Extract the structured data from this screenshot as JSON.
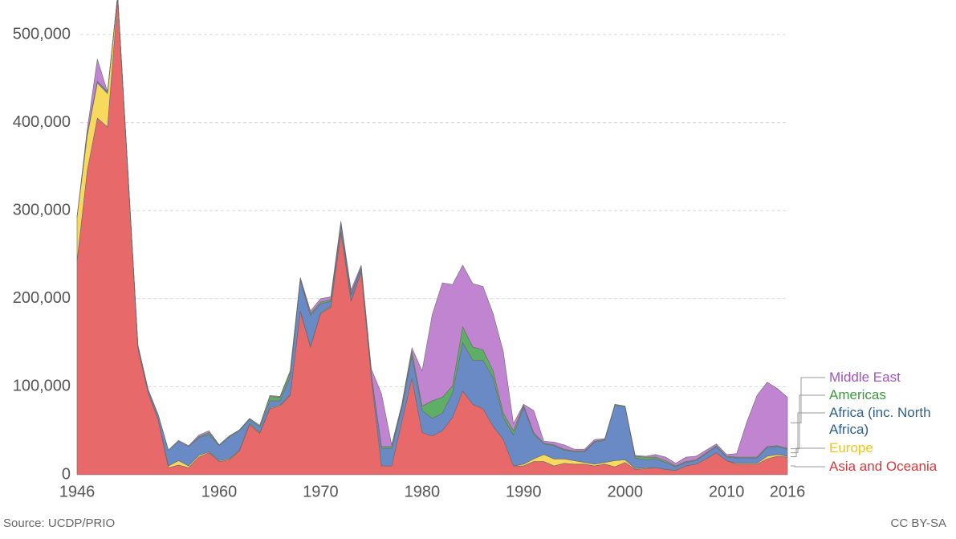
{
  "chart_data": {
    "type": "stacked-area",
    "x": [
      1946,
      1947,
      1948,
      1949,
      1950,
      1951,
      1952,
      1953,
      1954,
      1955,
      1956,
      1957,
      1958,
      1959,
      1960,
      1961,
      1962,
      1963,
      1964,
      1965,
      1966,
      1967,
      1968,
      1969,
      1970,
      1971,
      1972,
      1973,
      1974,
      1975,
      1976,
      1977,
      1978,
      1979,
      1980,
      1981,
      1982,
      1983,
      1984,
      1985,
      1986,
      1987,
      1988,
      1989,
      1990,
      1991,
      1992,
      1993,
      1994,
      1995,
      1996,
      1997,
      1998,
      1999,
      2000,
      2001,
      2002,
      2003,
      2004,
      2005,
      2006,
      2007,
      2008,
      2009,
      2010,
      2011,
      2012,
      2013,
      2014,
      2015,
      2016
    ],
    "series": [
      {
        "name": "Asia and Oceania",
        "color": "#e8696a",
        "label_color": "#d23a3a",
        "values": [
          243000,
          345000,
          405000,
          395000,
          540000,
          343000,
          143000,
          93000,
          62000,
          8000,
          11000,
          8000,
          20000,
          25000,
          15000,
          17000,
          27000,
          57000,
          47000,
          75000,
          78000,
          90000,
          185000,
          145000,
          183000,
          190000,
          275000,
          197000,
          230000,
          110000,
          10000,
          10000,
          60000,
          110000,
          48000,
          44000,
          50000,
          65000,
          95000,
          80000,
          75000,
          55000,
          40000,
          10000,
          10000,
          15000,
          15000,
          10000,
          13000,
          12000,
          12000,
          10000,
          12000,
          9000,
          14000,
          6000,
          7000,
          8000,
          6000,
          5000,
          10000,
          12000,
          18000,
          25000,
          16000,
          12000,
          12000,
          12000,
          18000,
          21000,
          20000
        ]
      },
      {
        "name": "Europe",
        "color": "#f7d95e",
        "label_color": "#f2c418",
        "values": [
          50000,
          40000,
          40000,
          38000,
          3000,
          2000,
          1000,
          1000,
          1000,
          2000,
          5000,
          2000,
          2000,
          1000,
          1000,
          1000,
          1000,
          1000,
          1000,
          1000,
          1000,
          1000,
          1000,
          1000,
          1000,
          1000,
          1000,
          1000,
          1000,
          0,
          0,
          0,
          0,
          0,
          0,
          0,
          0,
          0,
          0,
          0,
          0,
          0,
          0,
          0,
          2000,
          3000,
          8000,
          8000,
          5000,
          4000,
          2000,
          2000,
          2000,
          7000,
          3000,
          1000,
          1000,
          0,
          0,
          0,
          0,
          0,
          0,
          0,
          0,
          1000,
          1000,
          1000,
          3000,
          2000,
          1000
        ]
      },
      {
        "name": "Africa (inc. North Africa)",
        "color": "#6a8ac6",
        "label_color": "#2f5f8c",
        "values": [
          0,
          2000,
          2000,
          2000,
          2000,
          2000,
          3000,
          3000,
          5000,
          18000,
          22000,
          22000,
          20000,
          20000,
          17000,
          25000,
          22000,
          5000,
          6000,
          8000,
          5000,
          20000,
          35000,
          35000,
          10000,
          6000,
          8000,
          6000,
          4000,
          3000,
          20000,
          20000,
          15000,
          25000,
          25000,
          20000,
          20000,
          28000,
          55000,
          50000,
          55000,
          55000,
          25000,
          35000,
          65000,
          28000,
          12000,
          15000,
          10000,
          10000,
          12000,
          25000,
          25000,
          63000,
          60000,
          12000,
          9000,
          10000,
          8000,
          4000,
          4000,
          4000,
          6000,
          7000,
          4000,
          6000,
          6000,
          6000,
          10000,
          9000,
          8000
        ]
      },
      {
        "name": "Americas",
        "color": "#5fae66",
        "label_color": "#3c9a3c",
        "values": [
          0,
          0,
          0,
          0,
          0,
          0,
          0,
          0,
          0,
          0,
          0,
          0,
          1000,
          2000,
          1000,
          1000,
          1000,
          1000,
          2000,
          5000,
          4000,
          5000,
          2000,
          2000,
          2000,
          2000,
          2000,
          2000,
          1000,
          1000,
          2000,
          2000,
          3000,
          5000,
          5000,
          20000,
          18000,
          8000,
          18000,
          15000,
          12000,
          8000,
          5000,
          5000,
          2000,
          2000,
          1000,
          1000,
          1000,
          1000,
          1000,
          1000,
          1000,
          1000,
          1000,
          2000,
          3000,
          2000,
          2000,
          1000,
          1000,
          1000,
          1000,
          1000,
          1000,
          1000,
          1000,
          1000,
          1000,
          1000,
          1000
        ]
      },
      {
        "name": "Middle East",
        "color": "#c084d0",
        "label_color": "#a152c2",
        "values": [
          0,
          5000,
          25000,
          0,
          0,
          0,
          0,
          0,
          0,
          0,
          1000,
          1000,
          2000,
          2000,
          0,
          0,
          0,
          0,
          0,
          1000,
          1000,
          2000,
          1000,
          3000,
          4000,
          3000,
          2000,
          4000,
          2000,
          6000,
          60000,
          2000,
          2000,
          4000,
          40000,
          98000,
          130000,
          115000,
          70000,
          72000,
          72000,
          65000,
          70000,
          8000,
          1000,
          25000,
          2000,
          3000,
          5000,
          2000,
          2000,
          2000,
          1000,
          0,
          0,
          1000,
          1000,
          3000,
          4000,
          3000,
          5000,
          4000,
          3000,
          2000,
          2000,
          4000,
          40000,
          70000,
          73000,
          65000,
          58000
        ]
      }
    ],
    "xlim": [
      1946,
      2016
    ],
    "xticks": [
      1946,
      1960,
      1970,
      1980,
      1990,
      2000,
      2010,
      2016
    ],
    "ylim": [
      0,
      540000
    ],
    "yticks": [
      0,
      {
        "value": 100000,
        "label": "100,000"
      },
      {
        "value": 200000,
        "label": "200,000"
      },
      {
        "value": 300000,
        "label": "300,000"
      },
      {
        "value": 400000,
        "label": "400,000"
      },
      {
        "value": 500000,
        "label": "500,000"
      }
    ],
    "grid": true,
    "source": "Source: UCDP/PRIO",
    "license": "CC BY-SA"
  }
}
